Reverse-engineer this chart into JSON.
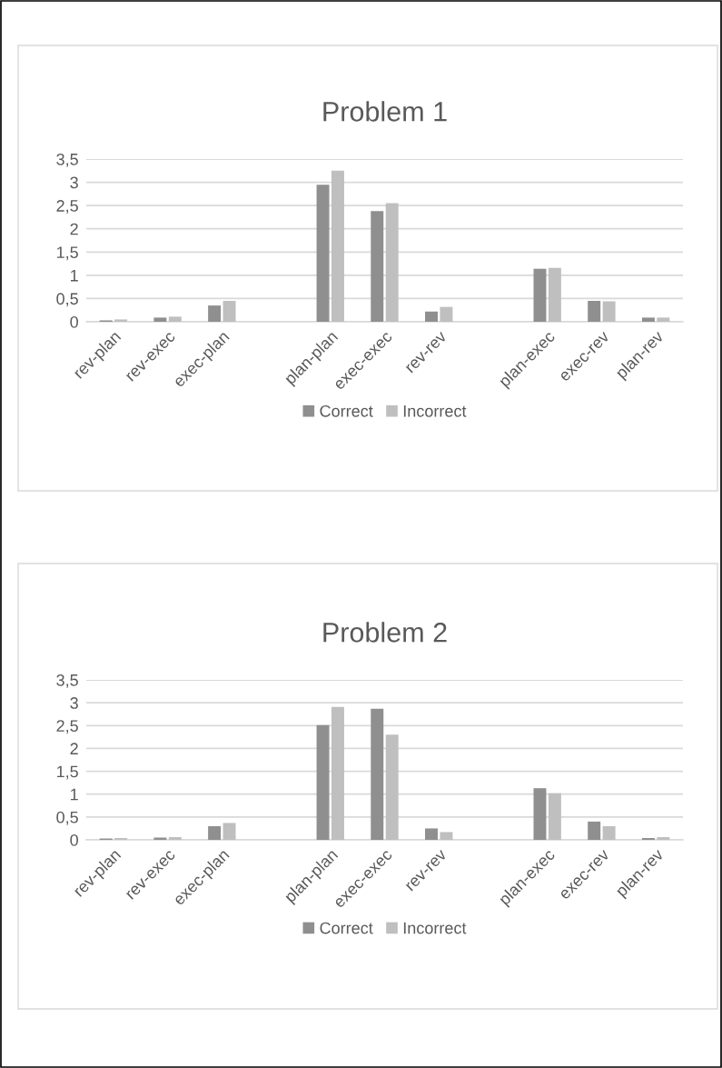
{
  "chart_data": [
    {
      "type": "bar",
      "title": "Problem 1",
      "categories": [
        "rev-plan",
        "rev-exec",
        "exec-plan",
        null,
        "plan-plan",
        "exec-exec",
        "rev-rev",
        null,
        "plan-exec",
        "exec-rev",
        "plan-rev"
      ],
      "series": [
        {
          "name": "Correct",
          "color": "#8f8f8f",
          "values": [
            0.03,
            0.09,
            0.35,
            null,
            2.95,
            2.38,
            0.22,
            null,
            1.14,
            0.45,
            0.09
          ]
        },
        {
          "name": "Incorrect",
          "color": "#bfbfbf",
          "values": [
            0.05,
            0.11,
            0.45,
            null,
            3.25,
            2.55,
            0.32,
            null,
            1.16,
            0.44,
            0.09
          ]
        }
      ],
      "ylim": [
        0,
        3.5
      ],
      "yticks": [
        0,
        {
          "value": 0.5,
          "label": "0,5"
        },
        1,
        {
          "value": 1.5,
          "label": "1,5"
        },
        2,
        {
          "value": 2.5,
          "label": "2,5"
        },
        3,
        {
          "value": 3.5,
          "label": "3,5"
        }
      ],
      "grid": "y",
      "legend": "bottom"
    },
    {
      "type": "bar",
      "title": "Problem 2",
      "categories": [
        "rev-plan",
        "rev-exec",
        "exec-plan",
        null,
        "plan-plan",
        "exec-exec",
        "rev-rev",
        null,
        "plan-exec",
        "exec-rev",
        "plan-rev"
      ],
      "series": [
        {
          "name": "Correct",
          "color": "#8f8f8f",
          "values": [
            0.03,
            0.05,
            0.3,
            null,
            2.51,
            2.87,
            0.25,
            null,
            1.13,
            0.4,
            0.04
          ]
        },
        {
          "name": "Incorrect",
          "color": "#bfbfbf",
          "values": [
            0.04,
            0.06,
            0.37,
            null,
            2.91,
            2.3,
            0.17,
            null,
            1.02,
            0.3,
            0.06
          ]
        }
      ],
      "ylim": [
        0,
        3.5
      ],
      "yticks": [
        0,
        {
          "value": 0.5,
          "label": "0,5"
        },
        1,
        {
          "value": 1.5,
          "label": "1,5"
        },
        2,
        {
          "value": 2.5,
          "label": "2,5"
        },
        3,
        {
          "value": 3.5,
          "label": "3,5"
        }
      ],
      "grid": "y",
      "legend": "bottom"
    }
  ]
}
